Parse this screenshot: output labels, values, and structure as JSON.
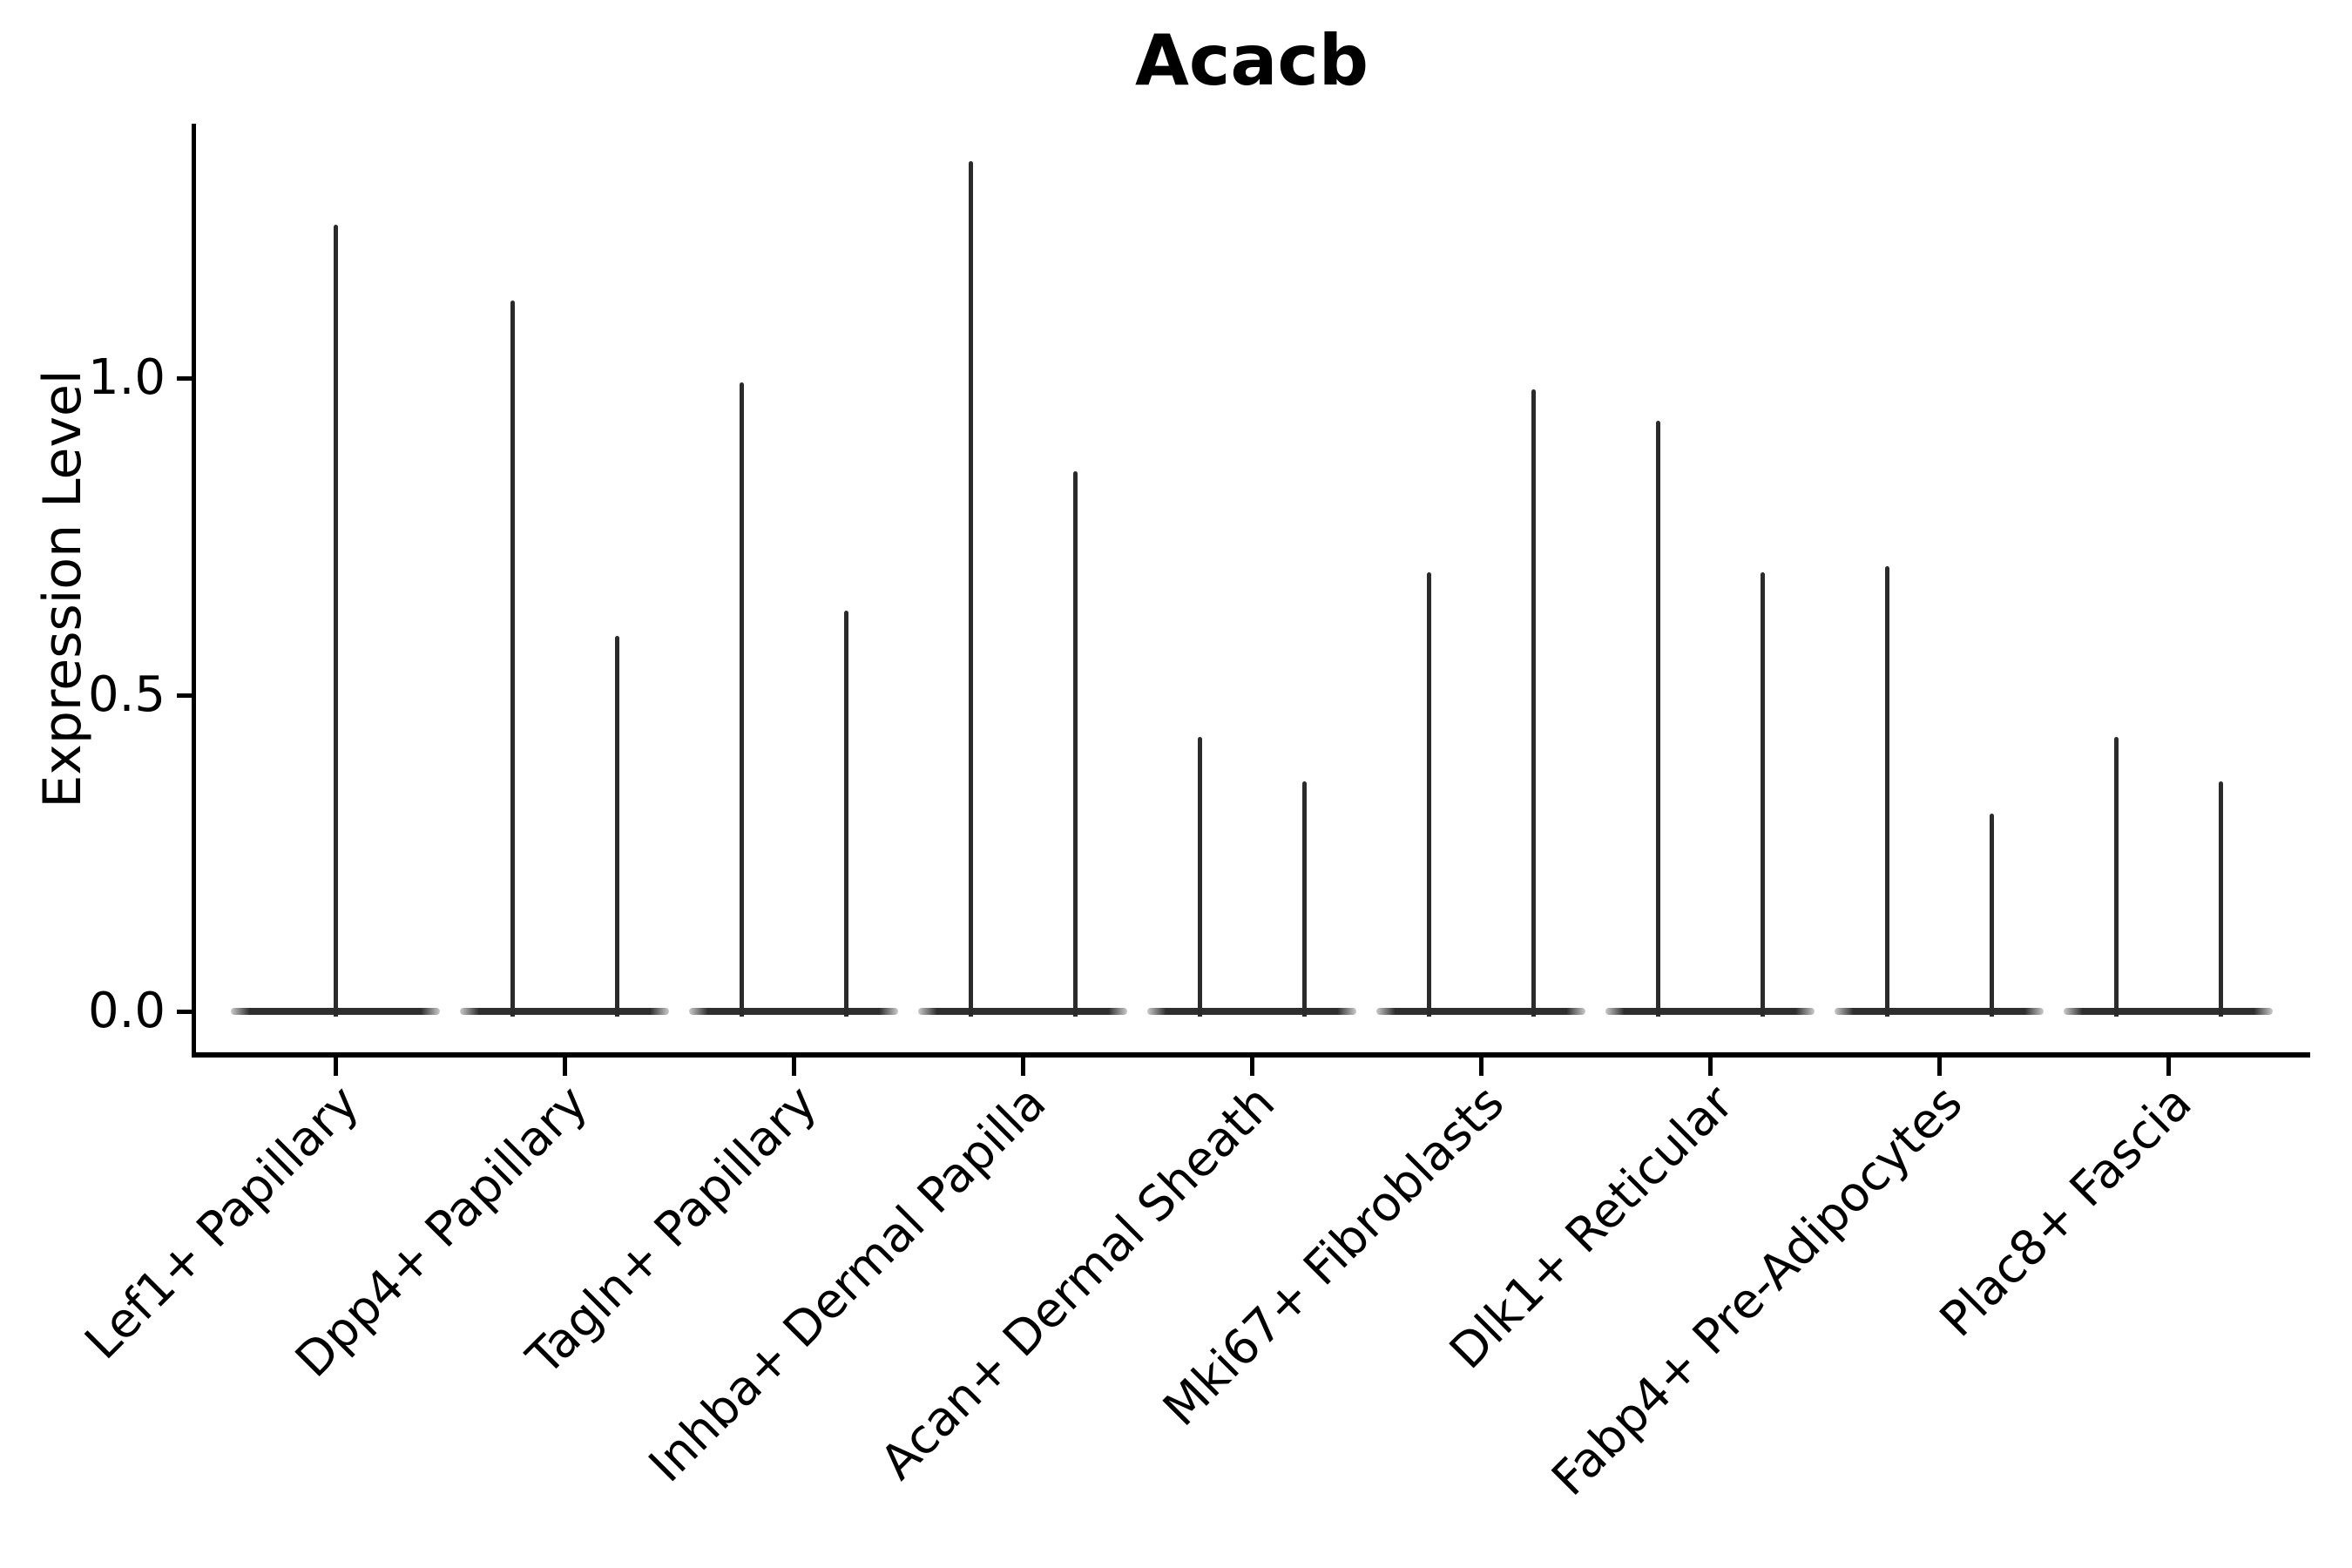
{
  "figure": {
    "title": "Acacb",
    "background": "#ffffff"
  },
  "chart_data": {
    "type": "violin",
    "title": "Acacb",
    "ylabel": "Expression Level",
    "xlabel": "",
    "yticks": [
      0.0,
      0.5,
      1.0
    ],
    "ytick_labels": [
      "0.0",
      "0.5",
      "1.0"
    ],
    "ylim": [
      -0.067,
      1.4
    ],
    "grid": false,
    "legend_position": "none",
    "x_label_rotation_deg": 45,
    "categories": [
      "Lef1+ Papillary",
      "Dpp4+ Papillary",
      "Tagln+ Papillary",
      "Inhba+ Dermal Papilla",
      "Acan+ Dermal Sheath",
      "Mki67+ Fibroblasts",
      "Dlk1+ Reticular",
      "Fabp4+ Pre-Adipocytes",
      "Plac8+ Fascia"
    ],
    "violin_style": "needle-thin violins: flat base at 0 with a vertical spike to the max expression; categories with two violins are dodged left/right",
    "violins": [
      [
        1.24
      ],
      [
        1.12,
        0.59
      ],
      [
        0.99,
        0.63
      ],
      [
        1.34,
        0.85
      ],
      [
        0.43,
        0.36
      ],
      [
        0.69,
        0.98
      ],
      [
        0.93,
        0.69
      ],
      [
        0.7,
        0.31
      ],
      [
        0.43,
        0.36
      ]
    ]
  },
  "colors": {
    "violin": "#2b2b2b",
    "violin_base": "#2e2e2e",
    "axis": "#000000",
    "text": "#000000",
    "background": "#ffffff"
  }
}
